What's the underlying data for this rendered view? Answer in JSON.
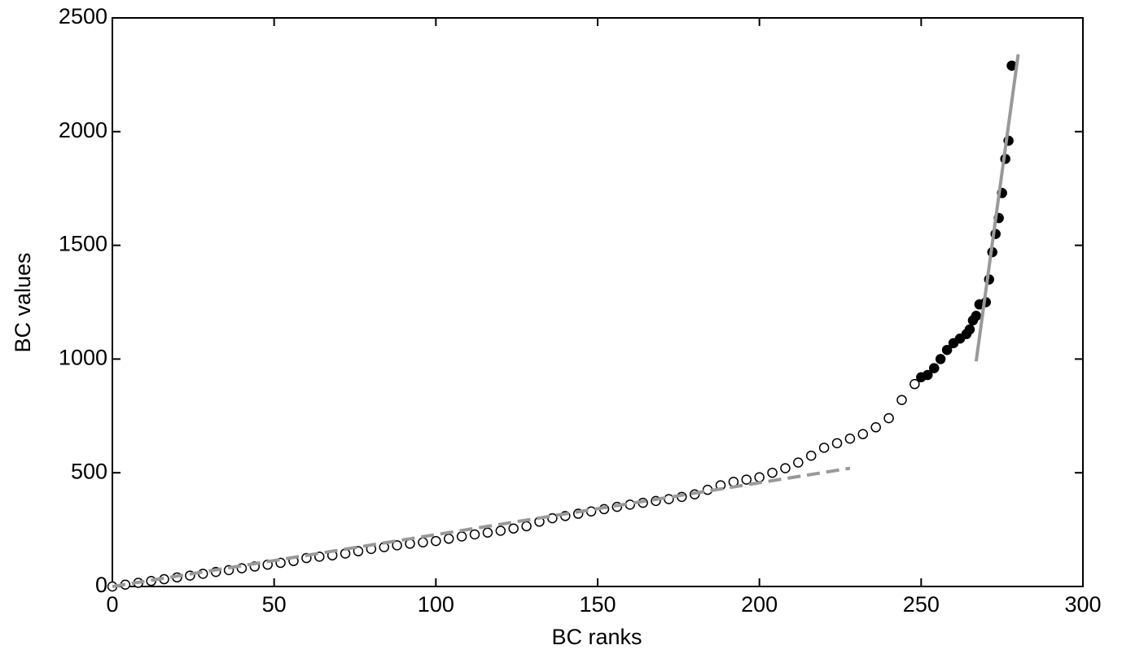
{
  "chart_data": {
    "type": "scatter",
    "xlabel": "BC ranks",
    "ylabel": "BC values",
    "xlim": [
      0,
      300
    ],
    "ylim": [
      0,
      2500
    ],
    "xticks": [
      0,
      50,
      100,
      150,
      200,
      250,
      300
    ],
    "yticks": [
      0,
      500,
      1000,
      1500,
      2000,
      2500
    ],
    "grid": false,
    "series": [
      {
        "marker": "open",
        "color": "#000000",
        "x": [
          0,
          4,
          8,
          12,
          16,
          20,
          24,
          28,
          32,
          36,
          40,
          44,
          48,
          52,
          56,
          60,
          64,
          68,
          72,
          76,
          80,
          84,
          88,
          92,
          96,
          100,
          104,
          108,
          112,
          116,
          120,
          124,
          128,
          132,
          136,
          140,
          144,
          148,
          152,
          156,
          160,
          164,
          168,
          172,
          176,
          180,
          184,
          188,
          192,
          196,
          200,
          204,
          208,
          212,
          216,
          220,
          224,
          228,
          232,
          236,
          240,
          244,
          248
        ],
        "values": [
          0,
          8,
          16,
          24,
          32,
          40,
          48,
          56,
          64,
          72,
          80,
          88,
          96,
          104,
          112,
          125,
          131,
          137,
          145,
          155,
          165,
          173,
          181,
          188,
          194,
          200,
          210,
          220,
          229,
          237,
          245,
          255,
          265,
          285,
          300,
          310,
          320,
          330,
          340,
          350,
          360,
          368,
          376,
          384,
          394,
          405,
          425,
          445,
          460,
          470,
          480,
          500,
          520,
          545,
          575,
          610,
          630,
          650,
          670,
          700,
          740,
          820,
          890
        ]
      },
      {
        "marker": "filled",
        "color": "#000000",
        "x": [
          250,
          252,
          254,
          256,
          258,
          260,
          262,
          264,
          265,
          266,
          267,
          268,
          270,
          271,
          272,
          273,
          274,
          275,
          276,
          277,
          278
        ],
        "values": [
          920,
          930,
          960,
          1000,
          1040,
          1070,
          1090,
          1110,
          1130,
          1170,
          1190,
          1240,
          1250,
          1350,
          1470,
          1550,
          1620,
          1730,
          1880,
          1960,
          2290
        ]
      },
      {
        "marker": "dashed-line",
        "color": "#999999",
        "x": [
          0,
          228
        ],
        "values": [
          0,
          520
        ]
      },
      {
        "marker": "solid-line",
        "color": "#999999",
        "x": [
          267,
          280
        ],
        "values": [
          990,
          2340
        ]
      }
    ]
  }
}
